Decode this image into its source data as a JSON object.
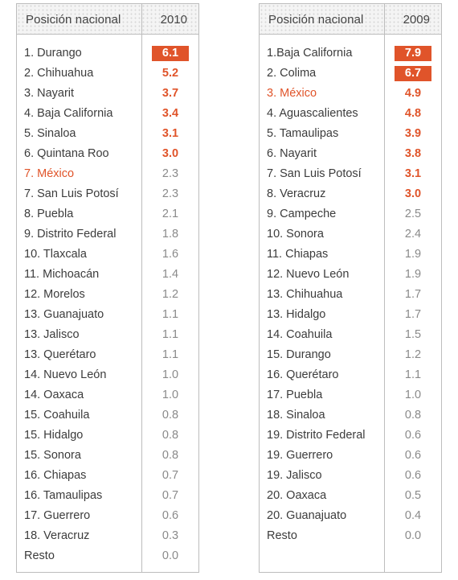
{
  "colors": {
    "accent": "#e0542a",
    "border": "#bdbdbd",
    "text": "#3c3c3c",
    "muted": "#8a8a8a"
  },
  "tables": [
    {
      "header": {
        "name": "Posición nacional",
        "year": "2010"
      },
      "rows": [
        {
          "name": "1. Durango",
          "value": "6.1",
          "style": "box"
        },
        {
          "name": "2. Chihuahua",
          "value": "5.2",
          "style": "hl"
        },
        {
          "name": "3. Nayarit",
          "value": "3.7",
          "style": "hl"
        },
        {
          "name": "4. Baja California",
          "value": "3.4",
          "style": "hl"
        },
        {
          "name": "5. Sinaloa",
          "value": "3.1",
          "style": "hl"
        },
        {
          "name": "6. Quintana Roo",
          "value": "3.0",
          "style": "hl"
        },
        {
          "name": "7. México",
          "value": "2.3",
          "style": "hl-name"
        },
        {
          "name": "7. San Luis Potosí",
          "value": "2.3",
          "style": ""
        },
        {
          "name": "8. Puebla",
          "value": "2.1",
          "style": ""
        },
        {
          "name": "9. Distrito Federal",
          "value": "1.8",
          "style": ""
        },
        {
          "name": "10. Tlaxcala",
          "value": "1.6",
          "style": ""
        },
        {
          "name": "11. Michoacán",
          "value": "1.4",
          "style": ""
        },
        {
          "name": "12. Morelos",
          "value": "1.2",
          "style": ""
        },
        {
          "name": "13. Guanajuato",
          "value": "1.1",
          "style": ""
        },
        {
          "name": "13. Jalisco",
          "value": "1.1",
          "style": ""
        },
        {
          "name": "13. Querétaro",
          "value": "1.1",
          "style": ""
        },
        {
          "name": "14. Nuevo León",
          "value": "1.0",
          "style": ""
        },
        {
          "name": "14. Oaxaca",
          "value": "1.0",
          "style": ""
        },
        {
          "name": "15. Coahuila",
          "value": "0.8",
          "style": ""
        },
        {
          "name": "15. Hidalgo",
          "value": "0.8",
          "style": ""
        },
        {
          "name": "15. Sonora",
          "value": "0.8",
          "style": ""
        },
        {
          "name": "16. Chiapas",
          "value": "0.7",
          "style": ""
        },
        {
          "name": "16. Tamaulipas",
          "value": "0.7",
          "style": ""
        },
        {
          "name": "17. Guerrero",
          "value": "0.6",
          "style": ""
        },
        {
          "name": "18. Veracruz",
          "value": "0.3",
          "style": ""
        },
        {
          "name": "Resto",
          "value": "0.0",
          "style": ""
        }
      ]
    },
    {
      "header": {
        "name": "Posición nacional",
        "year": "2009"
      },
      "rows": [
        {
          "name": "1.Baja California",
          "value": "7.9",
          "style": "box"
        },
        {
          "name": "2. Colima",
          "value": "6.7",
          "style": "box"
        },
        {
          "name": "3. México",
          "value": "4.9",
          "style": "hl hl-name"
        },
        {
          "name": "4. Aguascalientes",
          "value": "4.8",
          "style": "hl"
        },
        {
          "name": "5. Tamaulipas",
          "value": "3.9",
          "style": "hl"
        },
        {
          "name": "6. Nayarit",
          "value": "3.8",
          "style": "hl"
        },
        {
          "name": "7. San Luis Potosí",
          "value": "3.1",
          "style": "hl"
        },
        {
          "name": "8. Veracruz",
          "value": "3.0",
          "style": "hl"
        },
        {
          "name": "9. Campeche",
          "value": "2.5",
          "style": ""
        },
        {
          "name": "10. Sonora",
          "value": "2.4",
          "style": ""
        },
        {
          "name": "11. Chiapas",
          "value": "1.9",
          "style": ""
        },
        {
          "name": "12. Nuevo León",
          "value": "1.9",
          "style": ""
        },
        {
          "name": "13. Chihuahua",
          "value": "1.7",
          "style": ""
        },
        {
          "name": "13. Hidalgo",
          "value": "1.7",
          "style": ""
        },
        {
          "name": "14. Coahuila",
          "value": "1.5",
          "style": ""
        },
        {
          "name": "15. Durango",
          "value": "1.2",
          "style": ""
        },
        {
          "name": "16. Querétaro",
          "value": "1.1",
          "style": ""
        },
        {
          "name": "17. Puebla",
          "value": "1.0",
          "style": ""
        },
        {
          "name": "18. Sinaloa",
          "value": "0.8",
          "style": ""
        },
        {
          "name": "19. Distrito Federal",
          "value": "0.6",
          "style": ""
        },
        {
          "name": "19. Guerrero",
          "value": "0.6",
          "style": ""
        },
        {
          "name": "19. Jalisco",
          "value": "0.6",
          "style": ""
        },
        {
          "name": "20. Oaxaca",
          "value": "0.5",
          "style": ""
        },
        {
          "name": "20. Guanajuato",
          "value": "0.4",
          "style": ""
        },
        {
          "name": "Resto",
          "value": "0.0",
          "style": ""
        }
      ]
    }
  ]
}
